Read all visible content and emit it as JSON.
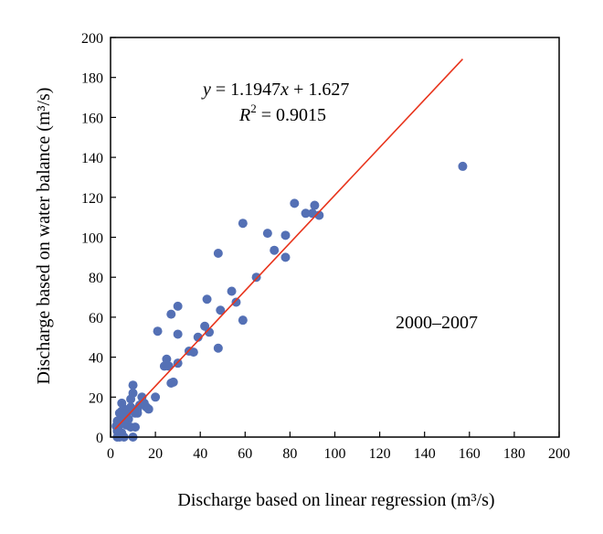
{
  "chart_data": {
    "type": "scatter",
    "title": "",
    "xlabel": "Discharge based on linear regression (m³/s)",
    "ylabel": "Discharge based on water balance (m³/s)",
    "xlim": [
      0,
      200
    ],
    "ylim": [
      0,
      200
    ],
    "xticks": [
      0,
      20,
      40,
      60,
      80,
      100,
      120,
      140,
      160,
      180,
      200
    ],
    "yticks": [
      0,
      20,
      40,
      60,
      80,
      100,
      120,
      140,
      160,
      180,
      200
    ],
    "grid": false,
    "colors": {
      "points": "#5470b5",
      "fit_line": "#e8341c",
      "frame": "#000000"
    },
    "annotations": {
      "equation": {
        "y_var": "y",
        "eq_text": " = 1.1947",
        "x_var": "x",
        "tail_text": " + 1.627"
      },
      "r2": {
        "r_var": "R",
        "sup": "2",
        "value_text": " = 0.9015"
      },
      "period": "2000–2007"
    },
    "fit_line": {
      "slope": 1.1947,
      "intercept": 1.627,
      "x_start": 2,
      "x_end": 157
    },
    "points": [
      [
        157,
        135.5
      ],
      [
        93,
        111
      ],
      [
        91,
        116
      ],
      [
        90,
        112
      ],
      [
        87,
        112
      ],
      [
        82,
        117
      ],
      [
        78,
        101
      ],
      [
        78,
        90
      ],
      [
        73,
        93.5
      ],
      [
        70,
        102
      ],
      [
        65,
        80
      ],
      [
        59,
        107
      ],
      [
        59,
        58.5
      ],
      [
        56,
        67.5
      ],
      [
        54,
        73
      ],
      [
        49,
        63.5
      ],
      [
        48,
        92
      ],
      [
        48,
        44.5
      ],
      [
        44,
        52.5
      ],
      [
        43,
        69
      ],
      [
        42,
        55.5
      ],
      [
        39,
        50
      ],
      [
        37,
        42.5
      ],
      [
        35,
        43
      ],
      [
        30,
        65.5
      ],
      [
        30,
        51.5
      ],
      [
        30,
        37
      ],
      [
        28,
        27.5
      ],
      [
        27,
        61.5
      ],
      [
        27,
        27
      ],
      [
        26,
        35.5
      ],
      [
        25,
        39
      ],
      [
        24,
        35.5
      ],
      [
        21,
        53
      ],
      [
        20,
        20
      ],
      [
        17,
        14
      ],
      [
        16,
        15
      ],
      [
        15,
        17
      ],
      [
        14,
        20
      ],
      [
        13,
        16
      ],
      [
        12,
        14
      ],
      [
        11,
        12
      ],
      [
        11,
        5
      ],
      [
        10,
        22
      ],
      [
        10,
        26
      ],
      [
        10,
        0
      ],
      [
        9,
        19
      ],
      [
        9,
        15
      ],
      [
        9,
        5
      ],
      [
        8,
        13
      ],
      [
        8,
        9
      ],
      [
        7,
        11
      ],
      [
        7,
        6
      ],
      [
        6,
        14
      ],
      [
        6,
        8
      ],
      [
        5,
        17
      ],
      [
        5,
        13
      ],
      [
        5,
        10
      ],
      [
        5,
        2
      ],
      [
        4,
        12
      ],
      [
        4,
        6
      ],
      [
        4,
        0
      ],
      [
        3,
        8
      ],
      [
        3,
        3
      ],
      [
        3,
        0
      ],
      [
        2.5,
        5.5
      ],
      [
        6,
        0
      ],
      [
        12,
        12
      ]
    ]
  }
}
